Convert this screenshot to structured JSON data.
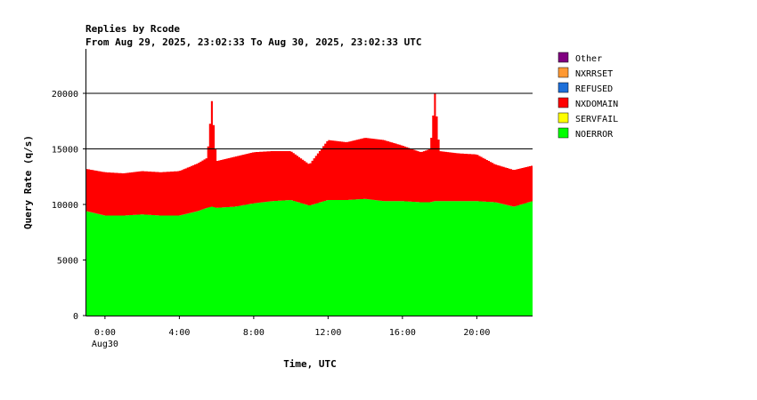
{
  "chart_data": {
    "type": "area",
    "title": "Replies by Rcode",
    "subtitle": "From Aug 29, 2025, 23:02:33 To Aug 30, 2025, 23:02:33 UTC",
    "xlabel": "Time, UTC",
    "ylabel": "Query Rate (q/s)",
    "ylim": [
      0,
      24000
    ],
    "y_ticks": [
      0,
      5000,
      10000,
      15000,
      20000
    ],
    "xlim_hours": [
      -1.0,
      23.0
    ],
    "x_ticks": [
      {
        "hour": 0,
        "label": "0:00",
        "sublabel": "Aug30"
      },
      {
        "hour": 4,
        "label": "4:00",
        "sublabel": ""
      },
      {
        "hour": 8,
        "label": "8:00",
        "sublabel": ""
      },
      {
        "hour": 12,
        "label": "12:00",
        "sublabel": ""
      },
      {
        "hour": 16,
        "label": "16:00",
        "sublabel": ""
      },
      {
        "hour": 20,
        "label": "20:00",
        "sublabel": ""
      }
    ],
    "stacked": true,
    "grid_lines_at": [
      15000,
      20000
    ],
    "legend_position": "right",
    "legend": [
      {
        "name": "Other",
        "color": "#800080"
      },
      {
        "name": "NXRRSET",
        "color": "#ff9933"
      },
      {
        "name": "REFUSED",
        "color": "#1e6fd9"
      },
      {
        "name": "NXDOMAIN",
        "color": "#ff0000"
      },
      {
        "name": "SERVFAIL",
        "color": "#ffff00"
      },
      {
        "name": "NOERROR",
        "color": "#00ff00"
      }
    ],
    "x_hours": [
      -1.0,
      0.0,
      1.0,
      2.0,
      3.0,
      4.0,
      5.0,
      5.5,
      5.75,
      6.0,
      7.0,
      8.0,
      9.0,
      10.0,
      11.0,
      12.0,
      13.0,
      14.0,
      15.0,
      16.0,
      17.0,
      17.5,
      17.75,
      18.0,
      19.0,
      20.0,
      21.0,
      22.0,
      23.0
    ],
    "series": [
      {
        "name": "NOERROR",
        "color": "#00ff00",
        "values": [
          9400,
          9000,
          9000,
          9100,
          9000,
          9000,
          9400,
          9700,
          9800,
          9700,
          9800,
          10100,
          10300,
          10400,
          9900,
          10400,
          10400,
          10500,
          10300,
          10300,
          10200,
          10200,
          10300,
          10300,
          10300,
          10300,
          10200,
          9800,
          10300
        ]
      },
      {
        "name": "NXDOMAIN",
        "color": "#ff0000",
        "values": [
          3800,
          3900,
          3800,
          3900,
          3900,
          4000,
          4300,
          4500,
          9500,
          4200,
          4500,
          4600,
          4500,
          4400,
          3700,
          5400,
          5200,
          5500,
          5500,
          5000,
          4500,
          4800,
          9700,
          4500,
          4300,
          4200,
          3400,
          3300,
          3200
        ]
      }
    ]
  }
}
